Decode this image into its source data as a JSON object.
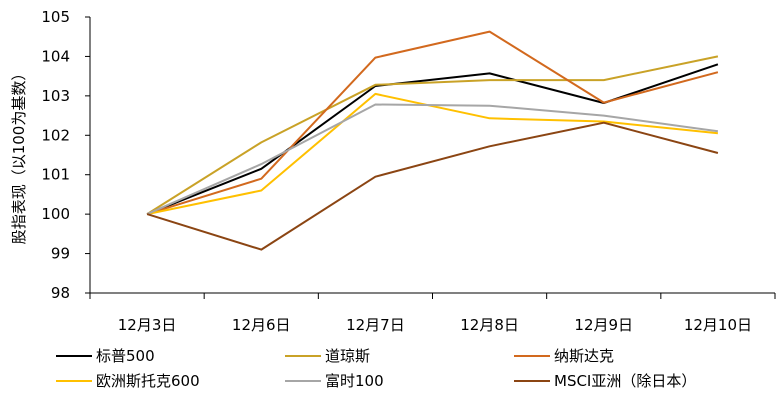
{
  "chart_data": {
    "type": "line",
    "ylabel": "股指表现（以100为基数）",
    "ylim": [
      98,
      105
    ],
    "yticks": [
      98,
      99,
      100,
      101,
      102,
      103,
      104,
      105
    ],
    "categories": [
      "12月3日",
      "12月6日",
      "12月7日",
      "12月8日",
      "12月9日",
      "12月10日"
    ],
    "grid": false,
    "legend_position": "bottom",
    "series": [
      {
        "name": "标普500",
        "color": "#000000",
        "values": [
          100,
          101.15,
          103.25,
          103.57,
          102.82,
          103.8
        ]
      },
      {
        "name": "道琼斯",
        "color": "#C9A227",
        "values": [
          100,
          101.82,
          103.28,
          103.4,
          103.4,
          104.0
        ]
      },
      {
        "name": "纳斯达克",
        "color": "#D2691E",
        "values": [
          100,
          100.9,
          103.97,
          104.63,
          102.83,
          103.6
        ]
      },
      {
        "name": "欧洲斯托克600",
        "color": "#FFC000",
        "values": [
          100,
          100.6,
          103.05,
          102.43,
          102.35,
          102.05
        ]
      },
      {
        "name": "富时100",
        "color": "#A6A6A6",
        "values": [
          100,
          101.27,
          102.78,
          102.75,
          102.5,
          102.1
        ]
      },
      {
        "name": "MSCI亚洲（除日本）",
        "color": "#8B4513",
        "values": [
          100,
          99.1,
          100.95,
          101.72,
          102.32,
          101.55
        ]
      }
    ]
  }
}
